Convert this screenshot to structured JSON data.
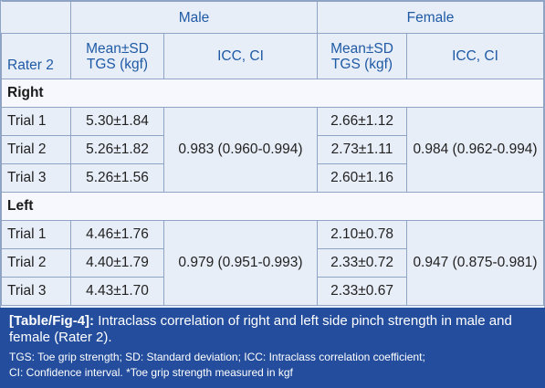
{
  "table": {
    "group_headers": {
      "male": "Male",
      "female": "Female"
    },
    "col_headers": {
      "rater": "Rater 2",
      "mean_sd_male_line1": "Mean±SD",
      "mean_sd_male_line2": "TGS (kgf)",
      "icc_male": "ICC, CI",
      "mean_sd_female_line1": "Mean±SD",
      "mean_sd_female_line2": "TGS (kgf)",
      "icc_female": "ICC, CI"
    },
    "sections": [
      {
        "label": "Right",
        "icc_male": "0.983 (0.960-0.994)",
        "icc_female": "0.984 (0.962-0.994)",
        "rows": [
          {
            "trial": "Trial 1",
            "male": "5.30±1.84",
            "female": "2.66±1.12"
          },
          {
            "trial": "Trial 2",
            "male": "5.26±1.82",
            "female": "2.73±1.11"
          },
          {
            "trial": "Trial 3",
            "male": "5.26±1.56",
            "female": "2.60±1.16"
          }
        ]
      },
      {
        "label": "Left",
        "icc_male": "0.979 (0.951-0.993)",
        "icc_female": "0.947 (0.875-0.981)",
        "rows": [
          {
            "trial": "Trial 1",
            "male": "4.46±1.76",
            "female": "2.10±0.78"
          },
          {
            "trial": "Trial 2",
            "male": "4.40±1.79",
            "female": "2.33±0.72"
          },
          {
            "trial": "Trial 3",
            "male": "4.43±1.70",
            "female": "2.33±0.67"
          }
        ]
      }
    ]
  },
  "caption": {
    "label": "[Table/Fig-4]:",
    "title": "Intraclass correlation of right and left side pinch strength in male and female (Rater 2).",
    "note1": "TGS: Toe grip strength; SD: Standard deviation; ICC: Intraclass correlation coefficient;",
    "note2": "CI: Confidence interval. *Toe grip strength measured in kgf"
  },
  "colors": {
    "header_text": "#1f5aa5",
    "caption_bg": "#244e9d",
    "table_bg": "#e8eef8",
    "border": "#8fa3c4"
  }
}
